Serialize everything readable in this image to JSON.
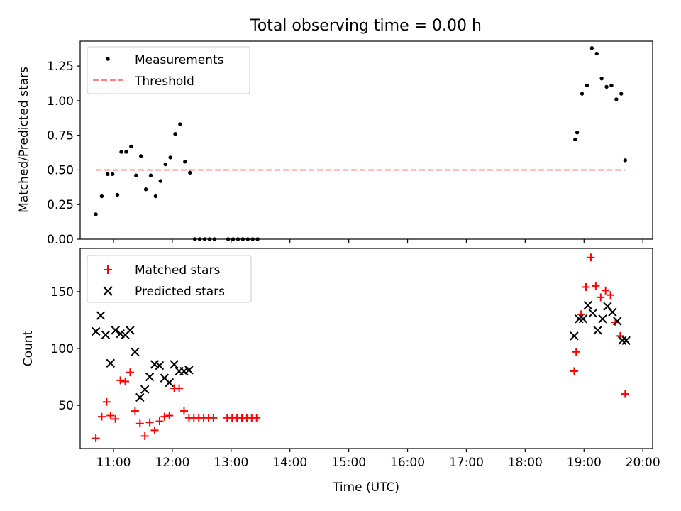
{
  "figure": {
    "title": "Total observing time = 0.00 h",
    "xlabel": "Time (UTC)"
  },
  "chart_data": [
    {
      "type": "scatter",
      "panel": "top",
      "ylabel": "Matched/Predicted stars",
      "xlim": [
        "10:26",
        "20:10"
      ],
      "ylim": [
        0,
        1.43
      ],
      "yticks": [
        0.0,
        0.25,
        0.5,
        0.75,
        1.0,
        1.25
      ],
      "yticklabels": [
        "0.00",
        "0.25",
        "0.50",
        "0.75",
        "1.00",
        "1.25"
      ],
      "legend_position": "upper-left",
      "series": [
        {
          "name": "Measurements",
          "marker": "dot",
          "color": "#000000",
          "points": [
            [
              "10:42",
              0.18
            ],
            [
              "10:48",
              0.31
            ],
            [
              "10:54",
              0.47
            ],
            [
              "10:59",
              0.47
            ],
            [
              "11:04",
              0.32
            ],
            [
              "11:08",
              0.63
            ],
            [
              "11:13",
              0.63
            ],
            [
              "11:18",
              0.67
            ],
            [
              "11:23",
              0.46
            ],
            [
              "11:28",
              0.6
            ],
            [
              "11:33",
              0.36
            ],
            [
              "11:38",
              0.46
            ],
            [
              "11:43",
              0.31
            ],
            [
              "11:48",
              0.42
            ],
            [
              "11:53",
              0.54
            ],
            [
              "11:58",
              0.59
            ],
            [
              "12:03",
              0.76
            ],
            [
              "12:08",
              0.83
            ],
            [
              "12:13",
              0.56
            ],
            [
              "12:18",
              0.48
            ],
            [
              "12:23",
              0.0
            ],
            [
              "12:28",
              0.0
            ],
            [
              "12:33",
              0.0
            ],
            [
              "12:38",
              0.0
            ],
            [
              "12:43",
              0.0
            ],
            [
              "12:57",
              0.0
            ],
            [
              "13:02",
              0.0
            ],
            [
              "13:07",
              0.0
            ],
            [
              "13:12",
              0.0
            ],
            [
              "13:17",
              0.0
            ],
            [
              "13:22",
              0.0
            ],
            [
              "13:27",
              0.0
            ],
            [
              "18:51",
              0.72
            ],
            [
              "18:53",
              0.77
            ],
            [
              "18:58",
              1.05
            ],
            [
              "19:03",
              1.11
            ],
            [
              "19:08",
              1.38
            ],
            [
              "19:13",
              1.34
            ],
            [
              "19:18",
              1.16
            ],
            [
              "19:23",
              1.1
            ],
            [
              "19:28",
              1.11
            ],
            [
              "19:33",
              1.01
            ],
            [
              "19:38",
              1.05
            ],
            [
              "19:42",
              0.57
            ]
          ]
        },
        {
          "name": "Threshold",
          "marker": "dashed-line",
          "color": "#ff8080",
          "points": [
            [
              "10:42",
              0.5
            ],
            [
              "19:42",
              0.5
            ]
          ]
        }
      ]
    },
    {
      "type": "scatter",
      "panel": "bottom",
      "ylabel": "Count",
      "xlim": [
        "10:26",
        "20:10"
      ],
      "ylim": [
        12,
        188
      ],
      "yticks": [
        50,
        100,
        150
      ],
      "yticklabels": [
        "50",
        "100",
        "150"
      ],
      "xticks": [
        "11:00",
        "12:00",
        "13:00",
        "14:00",
        "15:00",
        "16:00",
        "17:00",
        "18:00",
        "19:00",
        "20:00"
      ],
      "legend_position": "upper-left",
      "series": [
        {
          "name": "Matched stars",
          "marker": "plus",
          "color": "#ff0000",
          "points": [
            [
              "10:42",
              21
            ],
            [
              "10:48",
              40
            ],
            [
              "10:53",
              53
            ],
            [
              "10:57",
              41
            ],
            [
              "11:02",
              38
            ],
            [
              "11:07",
              72
            ],
            [
              "11:12",
              71
            ],
            [
              "11:17",
              79
            ],
            [
              "11:22",
              45
            ],
            [
              "11:27",
              34
            ],
            [
              "11:32",
              23
            ],
            [
              "11:37",
              35
            ],
            [
              "11:42",
              28
            ],
            [
              "11:47",
              36
            ],
            [
              "11:52",
              40
            ],
            [
              "11:57",
              41
            ],
            [
              "12:02",
              65
            ],
            [
              "12:07",
              65
            ],
            [
              "12:12",
              45
            ],
            [
              "12:17",
              39
            ],
            [
              "12:22",
              39
            ],
            [
              "12:27",
              39
            ],
            [
              "12:32",
              39
            ],
            [
              "12:37",
              39
            ],
            [
              "12:42",
              39
            ],
            [
              "12:56",
              39
            ],
            [
              "13:01",
              39
            ],
            [
              "13:06",
              39
            ],
            [
              "13:11",
              39
            ],
            [
              "13:16",
              39
            ],
            [
              "13:21",
              39
            ],
            [
              "13:26",
              39
            ],
            [
              "18:50",
              80
            ],
            [
              "18:52",
              97
            ],
            [
              "18:57",
              130
            ],
            [
              "19:02",
              154
            ],
            [
              "19:07",
              180
            ],
            [
              "19:12",
              155
            ],
            [
              "19:17",
              145
            ],
            [
              "19:22",
              151
            ],
            [
              "19:27",
              147
            ],
            [
              "19:32",
              123
            ],
            [
              "19:37",
              111
            ],
            [
              "19:42",
              60
            ]
          ]
        },
        {
          "name": "Predicted stars",
          "marker": "x",
          "color": "#000000",
          "points": [
            [
              "10:42",
              115
            ],
            [
              "10:47",
              129
            ],
            [
              "10:52",
              112
            ],
            [
              "10:57",
              87
            ],
            [
              "11:02",
              116
            ],
            [
              "11:07",
              113
            ],
            [
              "11:12",
              112
            ],
            [
              "11:17",
              116
            ],
            [
              "11:22",
              97
            ],
            [
              "11:27",
              57
            ],
            [
              "11:32",
              64
            ],
            [
              "11:37",
              75
            ],
            [
              "11:42",
              86
            ],
            [
              "11:47",
              85
            ],
            [
              "11:52",
              74
            ],
            [
              "11:57",
              70
            ],
            [
              "12:02",
              86
            ],
            [
              "12:07",
              80
            ],
            [
              "12:12",
              80
            ],
            [
              "12:17",
              81
            ],
            [
              "18:50",
              111
            ],
            [
              "18:55",
              126
            ],
            [
              "18:59",
              126
            ],
            [
              "19:04",
              138
            ],
            [
              "19:09",
              131
            ],
            [
              "19:14",
              116
            ],
            [
              "19:19",
              126
            ],
            [
              "19:24",
              137
            ],
            [
              "19:29",
              132
            ],
            [
              "19:34",
              124
            ],
            [
              "19:39",
              107
            ],
            [
              "19:43",
              107
            ]
          ]
        }
      ]
    }
  ]
}
